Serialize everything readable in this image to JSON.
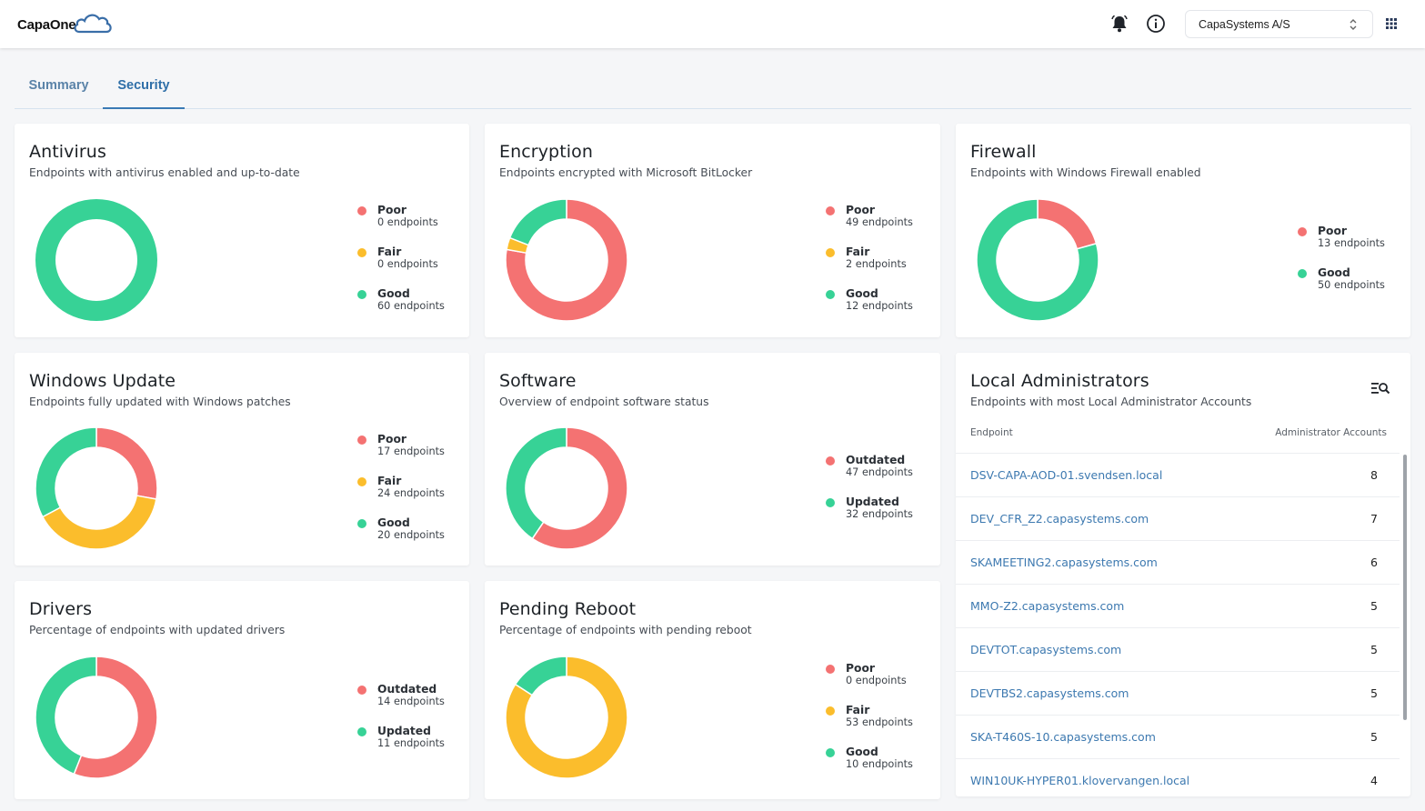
{
  "app": {
    "logo_text": "CapaOne"
  },
  "header": {
    "org_selected": "CapaSystems A/S",
    "icons": [
      "bell-icon",
      "info-icon",
      "chevron-updown-icon",
      "apps-grid-icon"
    ]
  },
  "tabs": [
    {
      "label": "Summary",
      "active": false
    },
    {
      "label": "Security",
      "active": true
    }
  ],
  "colors": {
    "poor": "#f47272",
    "fair": "#fbbd2c",
    "good": "#37d296",
    "accent": "#3d79b0"
  },
  "cards": {
    "antivirus": {
      "title": "Antivirus",
      "subtitle": "Endpoints with antivirus enabled and up-to-date",
      "legend": [
        {
          "label": "Poor",
          "count": "0 endpoints",
          "color": "#f47272"
        },
        {
          "label": "Fair",
          "count": "0 endpoints",
          "color": "#fbbd2c"
        },
        {
          "label": "Good",
          "count": "60 endpoints",
          "color": "#37d296"
        }
      ],
      "values": [
        0,
        0,
        60
      ]
    },
    "encryption": {
      "title": "Encryption",
      "subtitle": "Endpoints encrypted with Microsoft BitLocker",
      "legend": [
        {
          "label": "Poor",
          "count": "49 endpoints",
          "color": "#f47272"
        },
        {
          "label": "Fair",
          "count": "2 endpoints",
          "color": "#fbbd2c"
        },
        {
          "label": "Good",
          "count": "12 endpoints",
          "color": "#37d296"
        }
      ],
      "values": [
        49,
        2,
        12
      ]
    },
    "firewall": {
      "title": "Firewall",
      "subtitle": "Endpoints with Windows Firewall enabled",
      "legend": [
        {
          "label": "Poor",
          "count": "13 endpoints",
          "color": "#f47272"
        },
        {
          "label": "Good",
          "count": "50 endpoints",
          "color": "#37d296"
        }
      ],
      "values": [
        13,
        50
      ]
    },
    "windows_update": {
      "title": "Windows Update",
      "subtitle": "Endpoints fully updated with Windows patches",
      "legend": [
        {
          "label": "Poor",
          "count": "17 endpoints",
          "color": "#f47272"
        },
        {
          "label": "Fair",
          "count": "24 endpoints",
          "color": "#fbbd2c"
        },
        {
          "label": "Good",
          "count": "20 endpoints",
          "color": "#37d296"
        }
      ],
      "values": [
        17,
        24,
        20
      ]
    },
    "software": {
      "title": "Software",
      "subtitle": "Overview of endpoint software status",
      "legend": [
        {
          "label": "Outdated",
          "count": "47 endpoints",
          "color": "#f47272"
        },
        {
          "label": "Updated",
          "count": "32 endpoints",
          "color": "#37d296"
        }
      ],
      "values": [
        47,
        32
      ]
    },
    "drivers": {
      "title": "Drivers",
      "subtitle": "Percentage of endpoints with updated drivers",
      "legend": [
        {
          "label": "Outdated",
          "count": "14 endpoints",
          "color": "#f47272"
        },
        {
          "label": "Updated",
          "count": "11 endpoints",
          "color": "#37d296"
        }
      ],
      "values": [
        14,
        11
      ]
    },
    "pending_reboot": {
      "title": "Pending Reboot",
      "subtitle": "Percentage of endpoints with pending reboot",
      "legend": [
        {
          "label": "Poor",
          "count": "0 endpoints",
          "color": "#f47272"
        },
        {
          "label": "Fair",
          "count": "53 endpoints",
          "color": "#fbbd2c"
        },
        {
          "label": "Good",
          "count": "10 endpoints",
          "color": "#37d296"
        }
      ],
      "values": [
        0,
        53,
        10
      ]
    },
    "local_admins": {
      "title": "Local Administrators",
      "subtitle": "Endpoints with most Local Administrator Accounts",
      "col_endpoint": "Endpoint",
      "col_accounts": "Administrator Accounts",
      "rows": [
        {
          "endpoint": "DSV-CAPA-AOD-01.svendsen.local",
          "accounts": "8"
        },
        {
          "endpoint": "DEV_CFR_Z2.capasystems.com",
          "accounts": "7"
        },
        {
          "endpoint": "SKAMEETING2.capasystems.com",
          "accounts": "6"
        },
        {
          "endpoint": "MMO-Z2.capasystems.com",
          "accounts": "5"
        },
        {
          "endpoint": "DEVTOT.capasystems.com",
          "accounts": "5"
        },
        {
          "endpoint": "DEVTBS2.capasystems.com",
          "accounts": "5"
        },
        {
          "endpoint": "SKA-T460S-10.capasystems.com",
          "accounts": "5"
        },
        {
          "endpoint": "WIN10UK-HYPER01.klovervangen.local",
          "accounts": "4"
        }
      ]
    }
  }
}
